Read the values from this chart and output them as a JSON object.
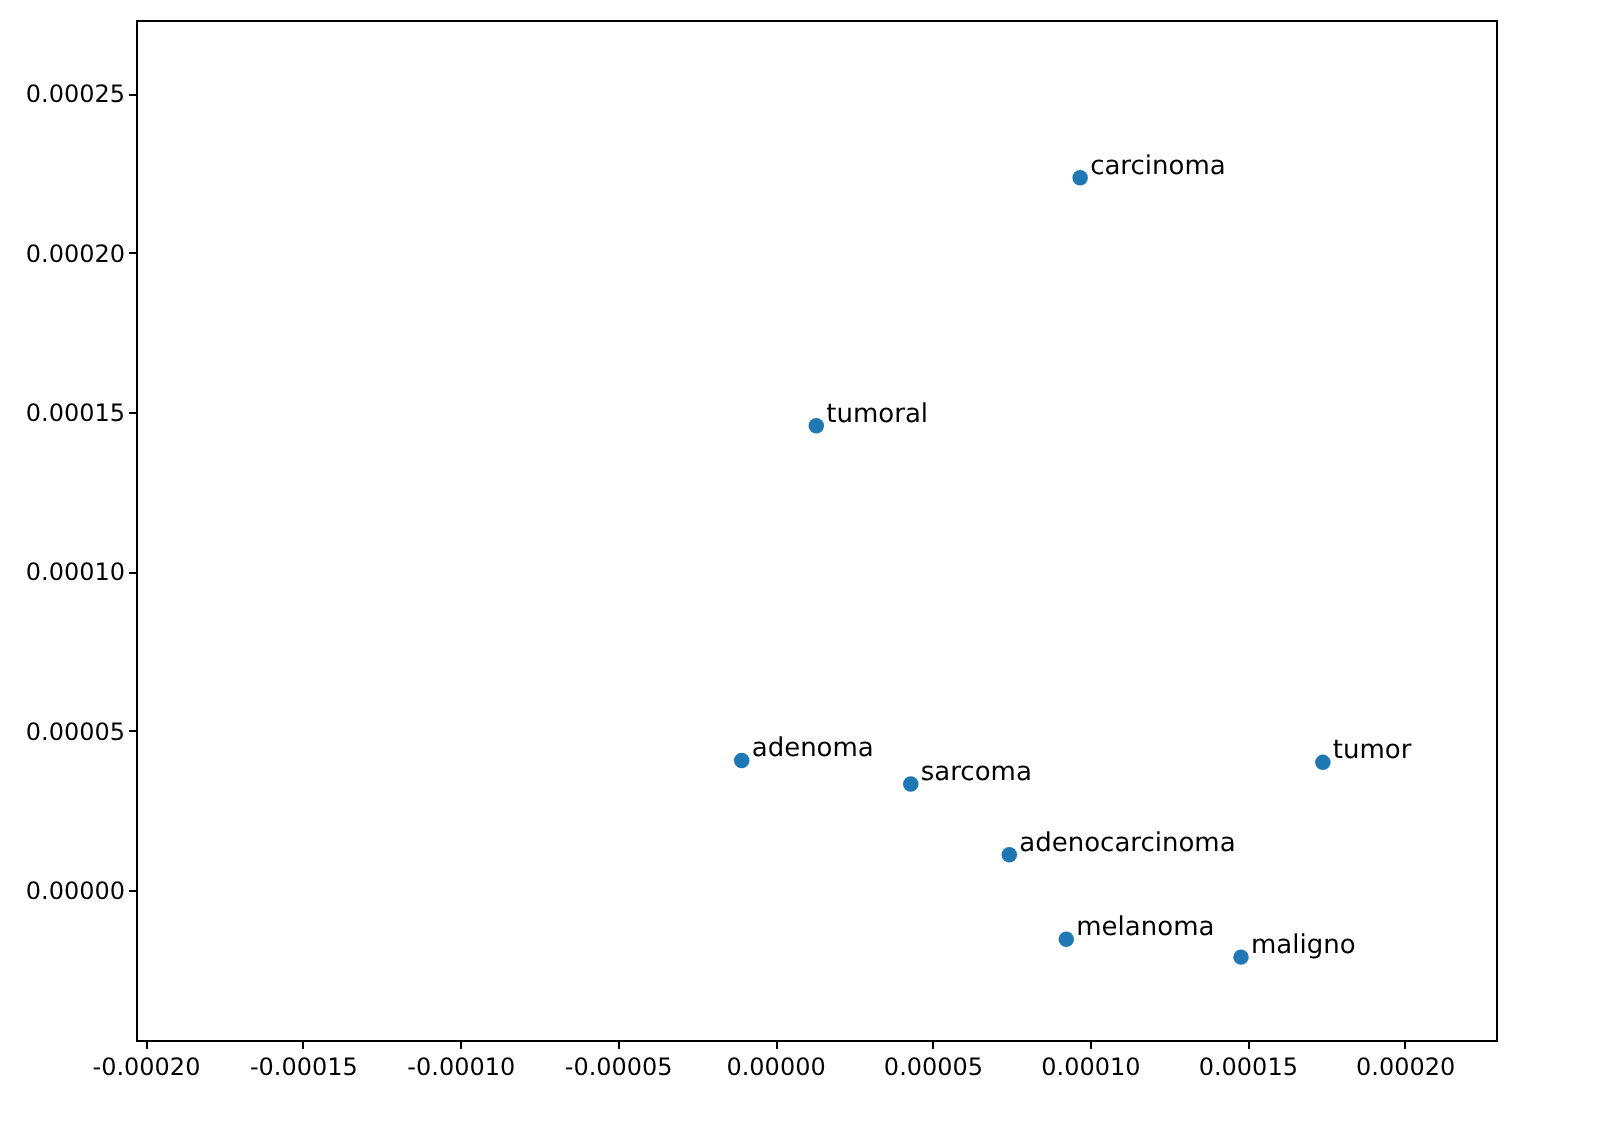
{
  "chart_data": {
    "type": "scatter",
    "x": [
      9.69e-05,
      1.31e-05,
      -1.06e-05,
      4.31e-05,
      0.000174,
      7.44e-05,
      9.25e-05,
      0.000148
    ],
    "series": [
      {
        "color": "#1f77b4",
        "values": [
          0.0002235,
          0.0001457,
          4.07e-05,
          3.33e-05,
          4.01e-05,
          1.11e-05,
          -1.54e-05,
          -2.1e-05
        ]
      }
    ],
    "annotations": [
      {
        "text": "carcinoma",
        "x": 9.69e-05,
        "y": 0.0002235
      },
      {
        "text": "tumoral",
        "x": 1.31e-05,
        "y": 0.0001457
      },
      {
        "text": "adenoma",
        "x": -1.06e-05,
        "y": 4.07e-05
      },
      {
        "text": "sarcoma",
        "x": 4.31e-05,
        "y": 3.33e-05
      },
      {
        "text": "tumor",
        "x": 0.000174,
        "y": 4.01e-05
      },
      {
        "text": "adenocarcinoma",
        "x": 7.44e-05,
        "y": 1.11e-05
      },
      {
        "text": "melanoma",
        "x": 9.25e-05,
        "y": -1.54e-05
      },
      {
        "text": "maligno",
        "x": 0.000148,
        "y": -2.1e-05
      }
    ],
    "xlim": [
      -0.000203,
      0.000229
    ],
    "ylim": [
      -4.7e-05,
      0.000273
    ],
    "xticks": [
      {
        "value": -0.0002,
        "label": "-0.00020"
      },
      {
        "value": -0.00015,
        "label": "-0.00015"
      },
      {
        "value": -0.0001,
        "label": "-0.00010"
      },
      {
        "value": -5e-05,
        "label": "-0.00005"
      },
      {
        "value": 0,
        "label": "0.00000"
      },
      {
        "value": 5e-05,
        "label": "0.00005"
      },
      {
        "value": 0.0001,
        "label": "0.00010"
      },
      {
        "value": 0.00015,
        "label": "0.00015"
      },
      {
        "value": 0.0002,
        "label": "0.00020"
      }
    ],
    "yticks": [
      {
        "value": 0,
        "label": "0.00000"
      },
      {
        "value": 5e-05,
        "label": "0.00005"
      },
      {
        "value": 0.0001,
        "label": "0.00010"
      },
      {
        "value": 0.00015,
        "label": "0.00015"
      },
      {
        "value": 0.0002,
        "label": "0.00020"
      },
      {
        "value": 0.00025,
        "label": "0.00025"
      }
    ],
    "grid": false,
    "marker": "circle"
  }
}
